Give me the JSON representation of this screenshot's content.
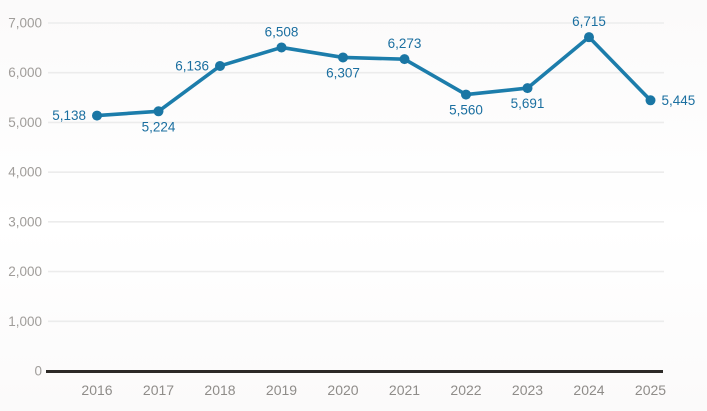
{
  "chart_data": {
    "type": "line",
    "title": "",
    "xlabel": "",
    "ylabel": "",
    "categories": [
      "2016",
      "2017",
      "2018",
      "2019",
      "2020",
      "2021",
      "2022",
      "2023",
      "2024",
      "2025"
    ],
    "series": [
      {
        "name": "value",
        "values": [
          5138,
          5224,
          6136,
          6508,
          6307,
          6273,
          5560,
          5691,
          6715,
          5445
        ]
      }
    ],
    "point_labels": [
      "5,138",
      "5,224",
      "6,136",
      "6,508",
      "6,307",
      "6,273",
      "5,560",
      "5,691",
      "6,715",
      "5,445"
    ],
    "label_placements": [
      "left",
      "below",
      "left",
      "above",
      "below",
      "above",
      "below",
      "below",
      "above",
      "right"
    ],
    "y_ticks": [
      "0",
      "1,000",
      "2,000",
      "3,000",
      "4,000",
      "5,000",
      "6,000",
      "7,000"
    ],
    "ylim": [
      0,
      7000
    ],
    "grid": true,
    "legend": "none",
    "colors": {
      "line": "#1c7dab",
      "marker": "#1a76a4",
      "data_label": "#1b6fa0",
      "axis_text": "#a09d9a",
      "x_axis_text": "#8f8c89",
      "grid_line": "#ececec",
      "axis_line": "#2d2a27",
      "background": "#fdfcfc"
    }
  }
}
